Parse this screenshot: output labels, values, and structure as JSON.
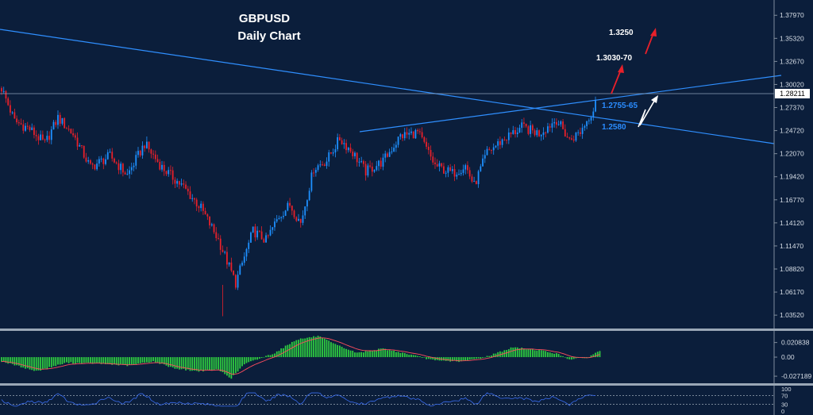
{
  "chart_data": {
    "type": "candlestick",
    "title": "GBPUSD",
    "subtitle": "Daily Chart",
    "main_axis": {
      "ylim": [
        1.0253,
        1.3936
      ],
      "tick_labels": [
        "1.37970",
        "1.35320",
        "1.32670",
        "1.30020",
        "1.27370",
        "1.24720",
        "1.22070",
        "1.19420",
        "1.16770",
        "1.14120",
        "1.11470",
        "1.08820",
        "1.06170",
        "1.03520"
      ],
      "tick_values": [
        1.3797,
        1.3532,
        1.3267,
        1.3002,
        1.2737,
        1.2472,
        1.2207,
        1.1942,
        1.1677,
        1.1412,
        1.1147,
        1.0882,
        1.0617,
        1.0352
      ]
    },
    "current_price": {
      "label": "1.28211",
      "value": 1.28211
    },
    "annotations": [
      {
        "text": "1.3250",
        "color": "#ffffff"
      },
      {
        "text": "1.3030-70",
        "color": "#ffffff"
      },
      {
        "text": "1.2755-65",
        "color": "#2a8cff"
      },
      {
        "text": "1.2580",
        "color": "#2a8cff"
      }
    ],
    "price_path": {
      "comment_free": true,
      "x_index": [
        0,
        6,
        13,
        20,
        26,
        33,
        41,
        50,
        58,
        66,
        74,
        84,
        92,
        100,
        108,
        116,
        122,
        128,
        133,
        138,
        144,
        150,
        156,
        162,
        168,
        176,
        184,
        192,
        200,
        208,
        214,
        218,
        224,
        232,
        240,
        248,
        256,
        262,
        267,
        274
      ],
      "close": [
        1.296,
        1.258,
        1.249,
        1.232,
        1.262,
        1.243,
        1.205,
        1.218,
        1.196,
        1.232,
        1.205,
        1.182,
        1.158,
        1.122,
        1.072,
        1.132,
        1.121,
        1.149,
        1.162,
        1.141,
        1.204,
        1.213,
        1.238,
        1.222,
        1.2,
        1.212,
        1.241,
        1.245,
        1.207,
        1.198,
        1.207,
        1.184,
        1.222,
        1.238,
        1.251,
        1.244,
        1.26,
        1.236,
        1.246,
        1.276
      ]
    },
    "macd": {
      "tick_labels": [
        "0.020838",
        "0.00",
        "-0.027189"
      ],
      "tick_values": [
        0.020838,
        0.0,
        -0.027189
      ],
      "ylim": [
        -0.035,
        0.034
      ],
      "histogram_path": {
        "x_index": [
          0,
          16,
          30,
          44,
          58,
          70,
          80,
          90,
          100,
          106,
          112,
          126,
          136,
          146,
          154,
          164,
          176,
          188,
          200,
          212,
          222,
          236,
          248,
          256,
          262,
          270,
          276
        ],
        "value": [
          -0.006,
          -0.02,
          -0.008,
          -0.009,
          -0.012,
          -0.006,
          -0.016,
          -0.02,
          -0.018,
          -0.03,
          -0.01,
          0.006,
          0.025,
          0.03,
          0.018,
          0.006,
          0.012,
          0.004,
          -0.005,
          -0.006,
          -0.001,
          0.014,
          0.01,
          0.005,
          -0.003,
          -0.001,
          0.009
        ]
      }
    },
    "rsi": {
      "tick_labels": [
        "100",
        "70",
        "30",
        "0"
      ],
      "tick_values": [
        100,
        70,
        30,
        0
      ],
      "ylim": [
        0,
        100
      ]
    },
    "colors": {
      "background": "#0b1e3b",
      "bull": "#1e90ff",
      "bear": "#e8202a",
      "trendline": "#2f8fff",
      "histogram": "#2ecc40",
      "signal": "#ff4d5e",
      "rsi_line": "#3a6df0",
      "text": "#ffffff",
      "arrow_red": "#e8202a",
      "arrow_white": "#ffffff"
    }
  }
}
